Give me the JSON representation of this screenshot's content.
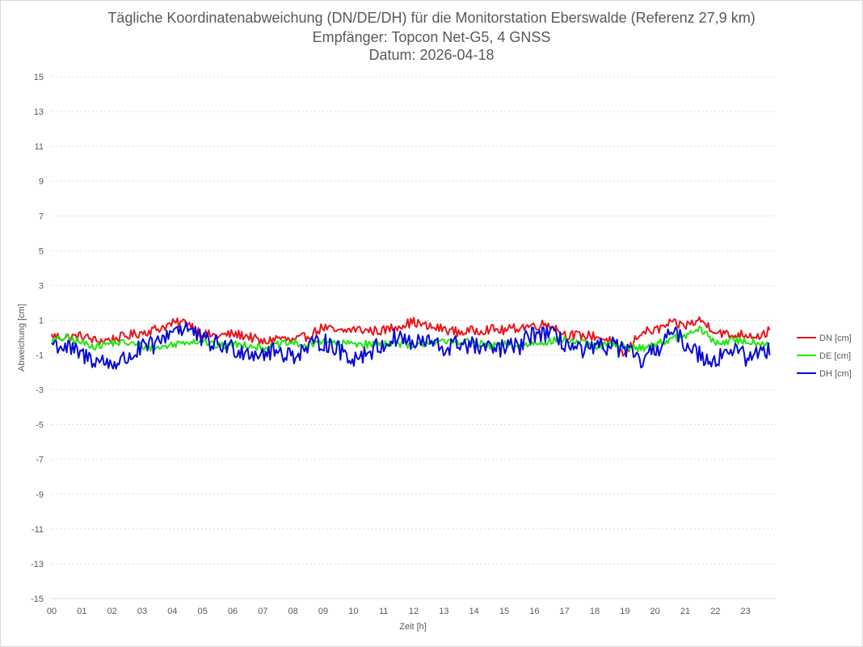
{
  "chart_data": {
    "type": "line",
    "title": [
      "Tägliche Koordinatenabweichung (DN/DE/DH) für die Monitorstation Eberswalde (Referenz 27,9 km)",
      "Empfänger: Topcon Net-G5, 4 GNSS",
      "Datum: 2026-04-18"
    ],
    "xlabel": "Zeit [h]",
    "ylabel": "Abweichung [cm]",
    "xlim": [
      0,
      24
    ],
    "ylim": [
      -15,
      15
    ],
    "x_ticks": [
      "00",
      "01",
      "02",
      "03",
      "04",
      "05",
      "06",
      "07",
      "08",
      "09",
      "10",
      "11",
      "12",
      "13",
      "14",
      "15",
      "16",
      "17",
      "18",
      "19",
      "20",
      "21",
      "22",
      "23"
    ],
    "y_ticks": [
      15,
      13,
      11,
      9,
      7,
      5,
      3,
      1,
      -1,
      -3,
      -5,
      -7,
      -9,
      -11,
      -13,
      -15
    ],
    "grid": true,
    "legend_position": "right",
    "x": [
      0,
      0.5,
      1,
      1.5,
      2,
      2.5,
      3,
      3.5,
      4,
      4.5,
      5,
      5.5,
      6,
      6.5,
      7,
      7.5,
      8,
      8.5,
      9,
      9.5,
      10,
      10.5,
      11,
      11.5,
      12,
      12.5,
      13,
      13.5,
      14,
      14.5,
      15,
      15.5,
      16,
      16.5,
      17,
      17.5,
      18,
      18.5,
      19,
      19.5,
      20,
      20.5,
      21,
      21.5,
      22,
      22.5,
      23,
      23.5,
      23.8
    ],
    "series": [
      {
        "name": "DN [cm]",
        "color": "#e8161b",
        "values": [
          0.1,
          0.0,
          0.1,
          -0.2,
          -0.1,
          0.1,
          0.3,
          0.5,
          0.8,
          0.9,
          0.2,
          0.1,
          0.2,
          0.1,
          -0.3,
          0.0,
          -0.2,
          0.1,
          0.6,
          0.3,
          0.5,
          0.4,
          0.4,
          0.7,
          0.9,
          0.6,
          0.5,
          0.3,
          0.4,
          0.5,
          0.4,
          0.6,
          0.7,
          0.8,
          0.2,
          0.1,
          0.1,
          -0.2,
          -1.0,
          0.3,
          0.4,
          0.8,
          0.7,
          1.0,
          0.4,
          0.1,
          0.2,
          0.1,
          0.4
        ]
      },
      {
        "name": "DE [cm]",
        "color": "#1ee60c",
        "values": [
          -0.2,
          0.0,
          -0.3,
          -0.5,
          -0.3,
          -0.3,
          -0.5,
          -0.6,
          -0.4,
          -0.2,
          -0.2,
          -0.5,
          -0.4,
          -0.4,
          -0.6,
          -0.4,
          -0.3,
          -0.5,
          -0.1,
          -0.4,
          -0.3,
          -0.4,
          -0.3,
          -0.3,
          -0.6,
          -0.2,
          -0.3,
          -0.2,
          -0.3,
          -0.5,
          -0.4,
          -0.5,
          -0.3,
          -0.2,
          -0.1,
          -0.3,
          -0.5,
          -0.4,
          -0.5,
          -0.6,
          -0.4,
          -0.1,
          0.1,
          0.5,
          -0.3,
          -0.2,
          -0.2,
          -0.3,
          -0.3
        ]
      },
      {
        "name": "DH [cm]",
        "color": "#0a0ad4",
        "values": [
          -0.3,
          -0.6,
          -1.0,
          -1.3,
          -1.5,
          -1.2,
          -0.6,
          -0.4,
          0.5,
          0.6,
          -0.2,
          -0.4,
          -0.6,
          -0.8,
          -0.9,
          -0.8,
          -1.0,
          -0.6,
          -0.2,
          -0.7,
          -1.2,
          -0.8,
          -0.4,
          0.1,
          -0.4,
          -0.2,
          -0.7,
          -0.3,
          -0.5,
          -0.7,
          -0.6,
          -0.5,
          0.3,
          0.2,
          -0.3,
          -0.8,
          -0.7,
          -0.4,
          -0.7,
          -1.4,
          -0.8,
          0.3,
          -0.3,
          -1.0,
          -1.3,
          -0.6,
          -1.1,
          -0.9,
          -0.6
        ]
      }
    ]
  }
}
